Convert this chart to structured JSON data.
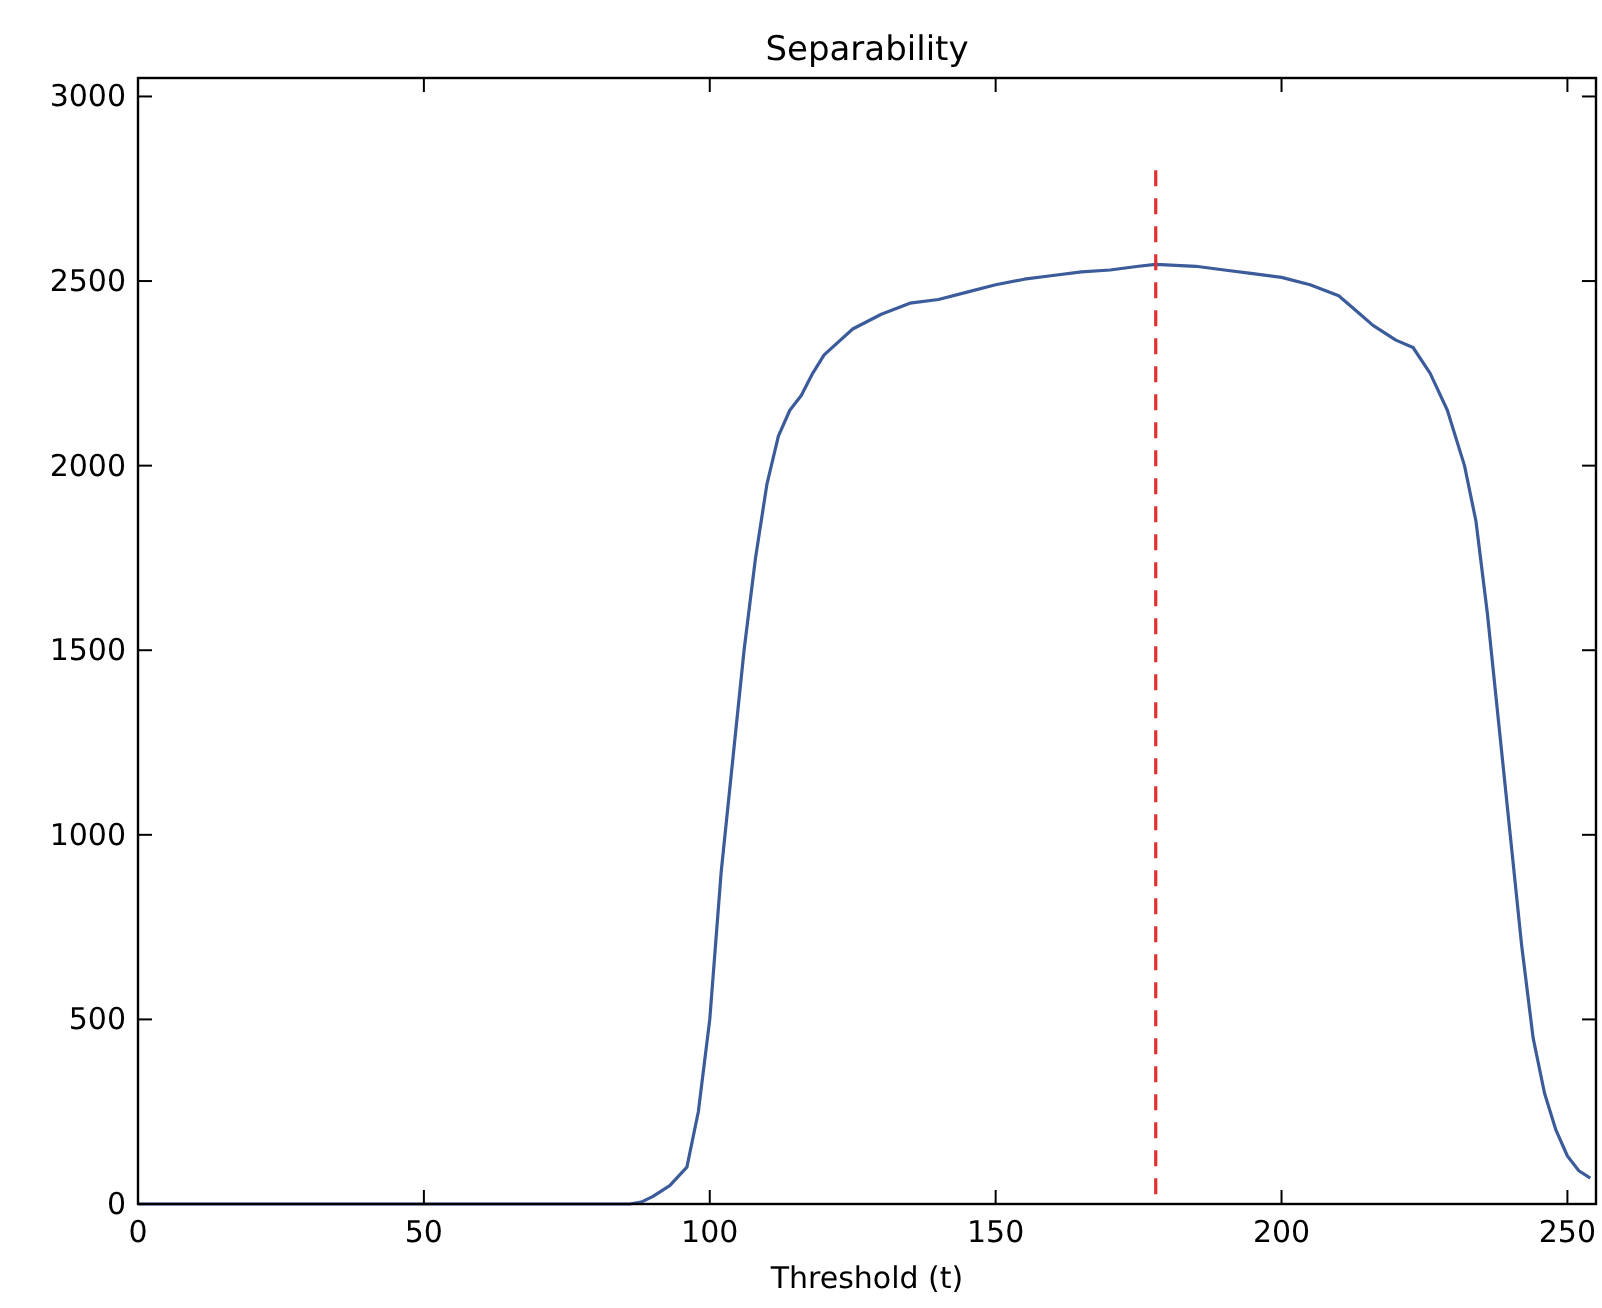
{
  "chart_data": {
    "type": "line",
    "title": "Separability",
    "xlabel": "Threshold (t)",
    "xlim": [
      0,
      255
    ],
    "xticks": [
      0,
      50,
      100,
      150,
      200,
      250
    ],
    "ylim": [
      0,
      3050
    ],
    "yticks": [
      0,
      500,
      1000,
      1500,
      2000,
      2500,
      3000
    ],
    "grid": false,
    "series": [
      {
        "color": "#3b5b9a",
        "line_style": "solid",
        "x": [
          0,
          20,
          40,
          60,
          80,
          86,
          88,
          90,
          93,
          96,
          98,
          100,
          102,
          104,
          106,
          108,
          110,
          112,
          114,
          116,
          118,
          120,
          125,
          130,
          135,
          140,
          145,
          150,
          155,
          160,
          165,
          170,
          175,
          178,
          185,
          190,
          195,
          200,
          205,
          210,
          213,
          216,
          220,
          223,
          226,
          229,
          232,
          234,
          236,
          238,
          240,
          242,
          244,
          246,
          248,
          250,
          252,
          254
        ],
        "values": [
          0,
          0,
          0,
          0,
          0,
          0,
          5,
          20,
          50,
          100,
          250,
          500,
          900,
          1200,
          1500,
          1750,
          1950,
          2080,
          2150,
          2190,
          2250,
          2300,
          2370,
          2410,
          2440,
          2450,
          2470,
          2490,
          2505,
          2515,
          2525,
          2530,
          2540,
          2545,
          2540,
          2530,
          2520,
          2510,
          2490,
          2460,
          2420,
          2380,
          2340,
          2320,
          2250,
          2150,
          2000,
          1850,
          1600,
          1300,
          1000,
          700,
          450,
          300,
          200,
          130,
          90,
          70
        ]
      },
      {
        "color": "#e03030",
        "line_style": "dashed",
        "x": [
          178,
          178
        ],
        "values": [
          2800,
          0
        ]
      }
    ]
  }
}
